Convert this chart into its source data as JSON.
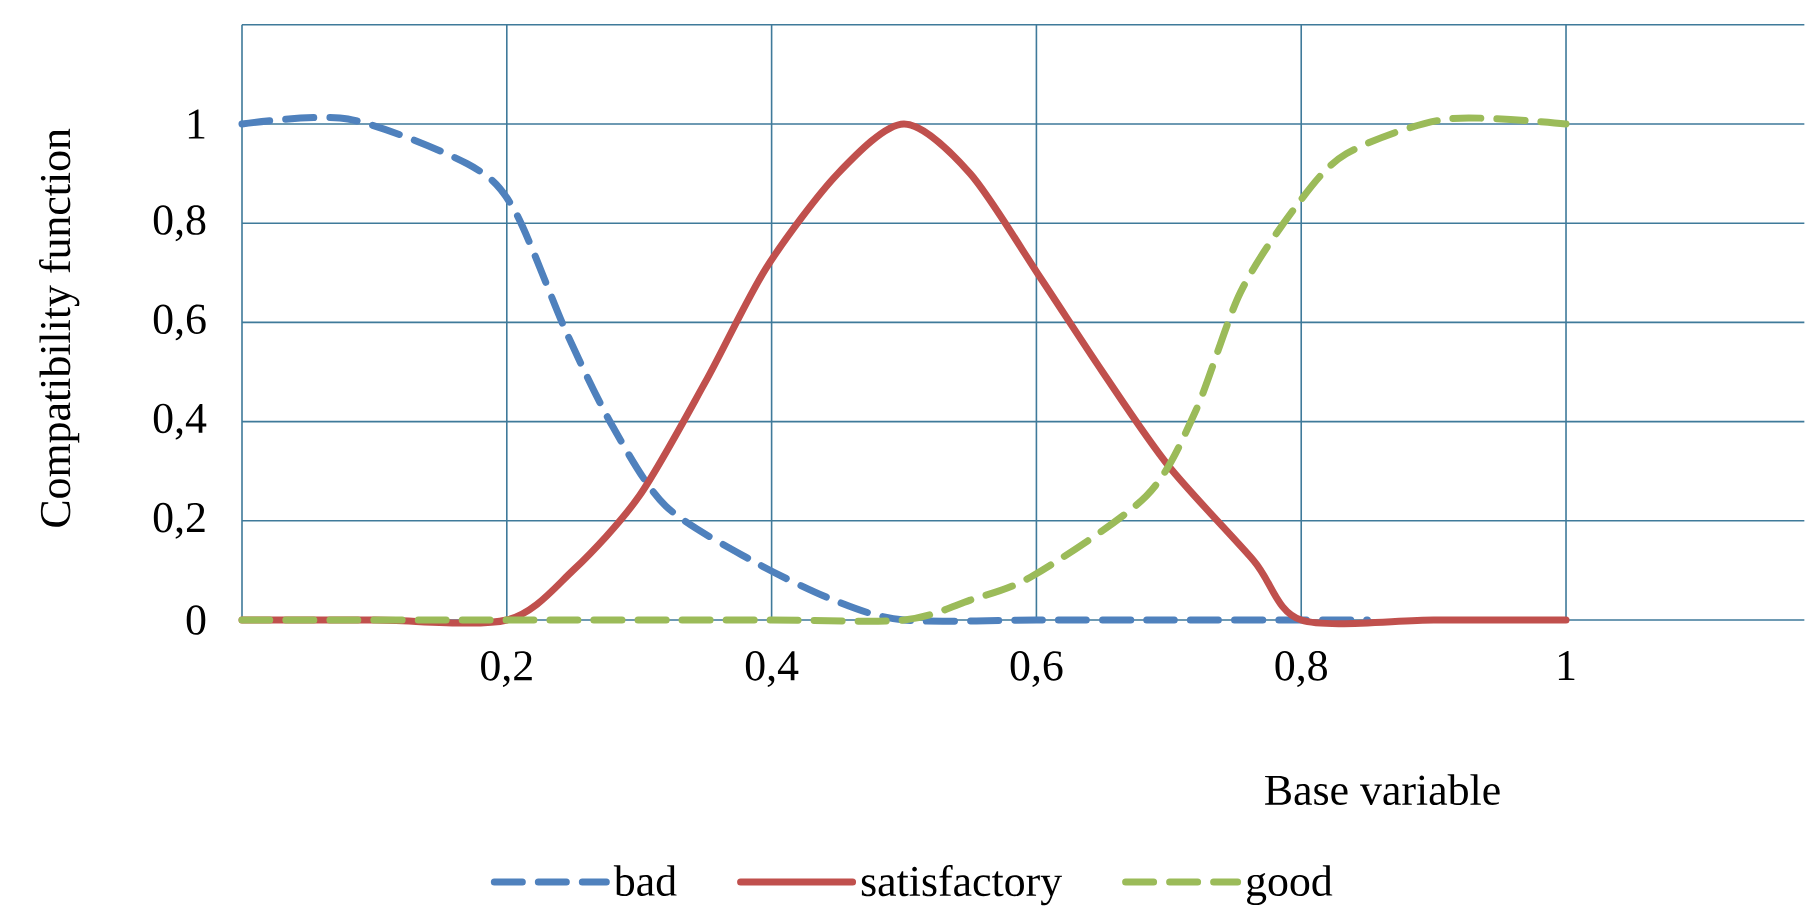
{
  "chart_data": {
    "type": "line",
    "xlabel": "Base variable",
    "ylabel": "Compatibility function",
    "xlim": [
      0,
      1.18
    ],
    "ylim": [
      0,
      1.2
    ],
    "xticks": [
      {
        "value": 0,
        "label": null
      },
      {
        "value": 0.2,
        "label": "0,2"
      },
      {
        "value": 0.4,
        "label": "0,4"
      },
      {
        "value": 0.6,
        "label": "0,6"
      },
      {
        "value": 0.8,
        "label": "0,8"
      },
      {
        "value": 1,
        "label": "1"
      }
    ],
    "yticks": [
      {
        "value": 0,
        "label": "0"
      },
      {
        "value": 0.2,
        "label": "0,2"
      },
      {
        "value": 0.4,
        "label": "0,4"
      },
      {
        "value": 0.6,
        "label": "0,6"
      },
      {
        "value": 0.8,
        "label": "0,8"
      },
      {
        "value": 1,
        "label": "1"
      },
      {
        "value": 1.2,
        "label": null
      }
    ],
    "grid": true,
    "legend": "bottom",
    "series": [
      {
        "name": "bad",
        "color": "#4f81bd",
        "line_style": "dashed",
        "x": [
          0,
          0.08,
          0.17,
          0.205,
          0.245,
          0.28,
          0.32,
          0.385,
          0.447,
          0.5,
          0.6,
          0.7,
          0.8,
          0.85
        ],
        "values": [
          1,
          1.01,
          0.92,
          0.83,
          0.58,
          0.39,
          0.23,
          0.12,
          0.04,
          0,
          0,
          0,
          0,
          0
        ]
      },
      {
        "name": "satisfactory",
        "color": "#c0504d",
        "line_style": "solid",
        "x": [
          0,
          0.1,
          0.2,
          0.25,
          0.3,
          0.35,
          0.396,
          0.45,
          0.5,
          0.55,
          0.603,
          0.65,
          0.7,
          0.764,
          0.8,
          0.9,
          1
        ],
        "values": [
          0,
          0,
          0,
          0.1,
          0.25,
          0.48,
          0.71,
          0.9,
          1,
          0.9,
          0.69,
          0.5,
          0.31,
          0.12,
          0,
          0,
          0
        ]
      },
      {
        "name": "good",
        "color": "#9bbb59",
        "line_style": "dashed",
        "x": [
          0,
          0.2,
          0.4,
          0.5,
          0.55,
          0.598,
          0.683,
          0.72,
          0.754,
          0.795,
          0.834,
          0.91,
          1
        ],
        "values": [
          0,
          0,
          0,
          0,
          0.04,
          0.09,
          0.25,
          0.42,
          0.66,
          0.83,
          0.94,
          1.01,
          1
        ]
      }
    ]
  }
}
